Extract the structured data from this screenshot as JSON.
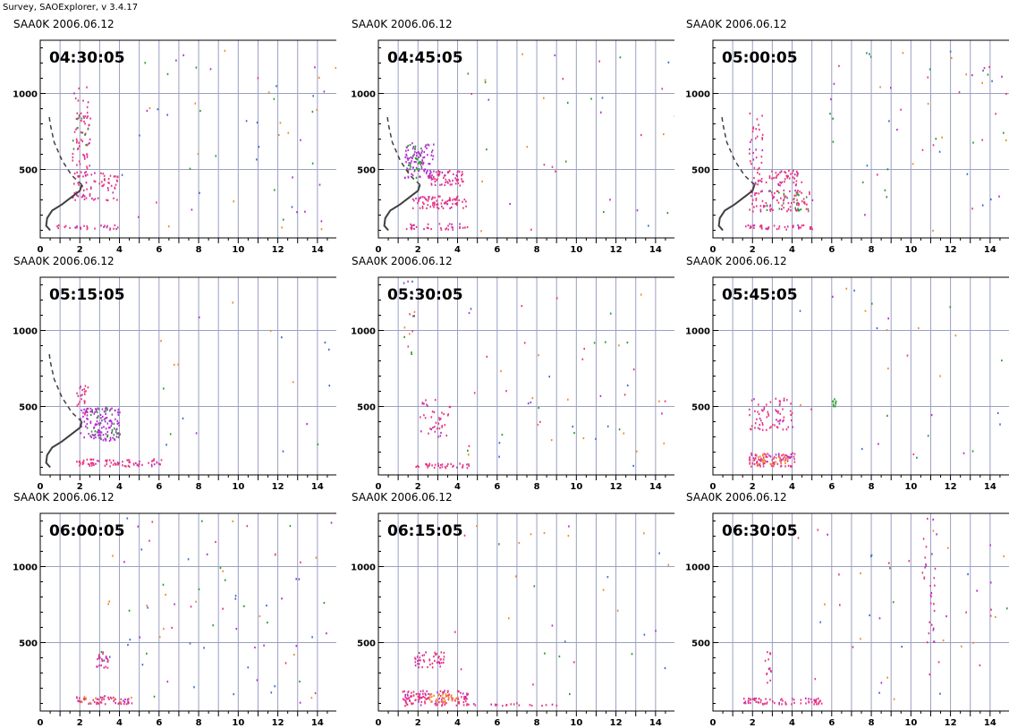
{
  "app_title": "Survey, SAOExplorer, v 3.4.17",
  "colors": {
    "grid": "#9aa0c4",
    "axis": "#000000",
    "echo_main": "#e8357f",
    "echo_alt": "#b02fd0",
    "echo_green": "#2e9a2e",
    "echo_orange": "#f08a2a",
    "echo_blue": "#3a6ad0",
    "profile": "#404040"
  },
  "chart_data": [
    {
      "type": "scatter",
      "caption": "SAA0K 2006.06.12",
      "time": "04:30:05",
      "x_ticks": [
        "0",
        "2",
        "4",
        "6",
        "8",
        "10",
        "12",
        "14"
      ],
      "y_ticks": [
        "500",
        "1000"
      ],
      "xlim": [
        0,
        15
      ],
      "ylim": [
        50,
        1350
      ],
      "grid": true,
      "has_profile": true,
      "clusters": [
        {
          "x": [
            1.6,
            2.5
          ],
          "y": [
            400,
            1050
          ],
          "n": 70,
          "c": "m"
        },
        {
          "x": [
            1.6,
            3.9
          ],
          "y": [
            300,
            500
          ],
          "n": 70,
          "c": "m"
        },
        {
          "x": [
            0.8,
            4.0
          ],
          "y": [
            110,
            140
          ],
          "n": 28,
          "c": "m"
        },
        {
          "x": [
            1.6,
            2.4
          ],
          "y": [
            600,
            900
          ],
          "n": 10,
          "c": "g"
        },
        {
          "x": [
            4,
            15
          ],
          "y": [
            100,
            1300
          ],
          "n": 55,
          "c": "s"
        }
      ]
    },
    {
      "type": "scatter",
      "caption": "SAA0K 2006.06.12",
      "time": "04:45:05",
      "x_ticks": [
        "0",
        "2",
        "4",
        "6",
        "8",
        "10",
        "12",
        "14"
      ],
      "y_ticks": [
        "500",
        "1000"
      ],
      "xlim": [
        0,
        15
      ],
      "ylim": [
        50,
        1350
      ],
      "grid": true,
      "has_profile": true,
      "clusters": [
        {
          "x": [
            1.3,
            2.8
          ],
          "y": [
            450,
            680
          ],
          "n": 90,
          "c": "a"
        },
        {
          "x": [
            1.4,
            2.2
          ],
          "y": [
            450,
            680
          ],
          "n": 25,
          "c": "g"
        },
        {
          "x": [
            2.5,
            4.3
          ],
          "y": [
            400,
            500
          ],
          "n": 70,
          "c": "m"
        },
        {
          "x": [
            1.7,
            4.4
          ],
          "y": [
            250,
            330
          ],
          "n": 80,
          "c": "m"
        },
        {
          "x": [
            1.2,
            4.5
          ],
          "y": [
            110,
            150
          ],
          "n": 35,
          "c": "m"
        },
        {
          "x": [
            4,
            15
          ],
          "y": [
            100,
            1300
          ],
          "n": 35,
          "c": "s"
        }
      ]
    },
    {
      "type": "scatter",
      "caption": "SAA0K 2006.06.12",
      "time": "05:00:05",
      "x_ticks": [
        "0",
        "2",
        "4",
        "6",
        "8",
        "10",
        "12",
        "14"
      ],
      "y_ticks": [
        "500",
        "1000"
      ],
      "xlim": [
        0,
        15
      ],
      "ylim": [
        50,
        1350
      ],
      "grid": true,
      "has_profile": true,
      "clusters": [
        {
          "x": [
            1.8,
            2.5
          ],
          "y": [
            500,
            880
          ],
          "n": 30,
          "c": "m"
        },
        {
          "x": [
            2.0,
            4.5
          ],
          "y": [
            400,
            500
          ],
          "n": 60,
          "c": "m"
        },
        {
          "x": [
            1.8,
            5.0
          ],
          "y": [
            230,
            370
          ],
          "n": 90,
          "c": "m"
        },
        {
          "x": [
            2.5,
            4.8
          ],
          "y": [
            230,
            370
          ],
          "n": 20,
          "c": "g"
        },
        {
          "x": [
            1.6,
            5.0
          ],
          "y": [
            110,
            140
          ],
          "n": 40,
          "c": "m"
        },
        {
          "x": [
            5,
            15
          ],
          "y": [
            100,
            1300
          ],
          "n": 55,
          "c": "s"
        }
      ]
    },
    {
      "type": "scatter",
      "caption": "SAA0K 2006.06.12",
      "time": "05:15:05",
      "x_ticks": [
        "0",
        "2",
        "4",
        "6",
        "8",
        "10",
        "12",
        "14"
      ],
      "y_ticks": [
        "500",
        "1000"
      ],
      "xlim": [
        0,
        15
      ],
      "ylim": [
        50,
        1350
      ],
      "grid": true,
      "has_profile": true,
      "clusters": [
        {
          "x": [
            1.8,
            2.4
          ],
          "y": [
            450,
            650
          ],
          "n": 25,
          "c": "m"
        },
        {
          "x": [
            2.0,
            4.0
          ],
          "y": [
            280,
            500
          ],
          "n": 130,
          "c": "a"
        },
        {
          "x": [
            2.5,
            4.0
          ],
          "y": [
            280,
            500
          ],
          "n": 25,
          "c": "g"
        },
        {
          "x": [
            1.8,
            6.2
          ],
          "y": [
            110,
            160
          ],
          "n": 75,
          "c": "m"
        },
        {
          "x": [
            5,
            15
          ],
          "y": [
            100,
            1300
          ],
          "n": 20,
          "c": "s"
        }
      ]
    },
    {
      "type": "scatter",
      "caption": "SAA0K 2006.06.12",
      "time": "05:30:05",
      "x_ticks": [
        "0",
        "2",
        "4",
        "6",
        "8",
        "10",
        "12",
        "14"
      ],
      "y_ticks": [
        "500",
        "1000"
      ],
      "xlim": [
        0,
        15
      ],
      "ylim": [
        50,
        1350
      ],
      "grid": true,
      "has_profile": false,
      "clusters": [
        {
          "x": [
            1.2,
            1.8
          ],
          "y": [
            850,
            1330
          ],
          "n": 15,
          "c": "s"
        },
        {
          "x": [
            2.0,
            3.6
          ],
          "y": [
            300,
            550
          ],
          "n": 40,
          "c": "m"
        },
        {
          "x": [
            1.8,
            4.6
          ],
          "y": [
            100,
            130
          ],
          "n": 35,
          "c": "m"
        },
        {
          "x": [
            4,
            15
          ],
          "y": [
            100,
            1300
          ],
          "n": 50,
          "c": "s"
        }
      ]
    },
    {
      "type": "scatter",
      "caption": "SAA0K 2006.06.12",
      "time": "05:45:05",
      "x_ticks": [
        "0",
        "2",
        "4",
        "6",
        "8",
        "10",
        "12",
        "14"
      ],
      "y_ticks": [
        "500",
        "1000"
      ],
      "xlim": [
        0,
        15
      ],
      "ylim": [
        50,
        1350
      ],
      "grid": true,
      "has_profile": false,
      "clusters": [
        {
          "x": [
            1.8,
            4.0
          ],
          "y": [
            350,
            560
          ],
          "n": 70,
          "c": "m"
        },
        {
          "x": [
            1.8,
            4.1
          ],
          "y": [
            110,
            200
          ],
          "n": 95,
          "c": "m"
        },
        {
          "x": [
            2.2,
            3.8
          ],
          "y": [
            120,
            190
          ],
          "n": 25,
          "c": "o"
        },
        {
          "x": [
            6.0,
            6.2
          ],
          "y": [
            480,
            560
          ],
          "n": 8,
          "c": "g"
        },
        {
          "x": [
            4,
            15
          ],
          "y": [
            100,
            1300
          ],
          "n": 30,
          "c": "s"
        }
      ]
    },
    {
      "type": "scatter",
      "caption": "SAA0K 2006.06.12",
      "time": "06:00:05",
      "x_ticks": [
        "0",
        "2",
        "4",
        "6",
        "8",
        "10",
        "12",
        "14"
      ],
      "y_ticks": [
        "500",
        "1000"
      ],
      "xlim": [
        0,
        15
      ],
      "ylim": [
        50,
        1350
      ],
      "grid": true,
      "has_profile": false,
      "clusters": [
        {
          "x": [
            2.8,
            3.4
          ],
          "y": [
            340,
            450
          ],
          "n": 25,
          "c": "m"
        },
        {
          "x": [
            1.8,
            4.6
          ],
          "y": [
            100,
            150
          ],
          "n": 55,
          "c": "m"
        },
        {
          "x": [
            2.0,
            4.6
          ],
          "y": [
            100,
            150
          ],
          "n": 10,
          "c": "o"
        },
        {
          "x": [
            3,
            15
          ],
          "y": [
            100,
            1350
          ],
          "n": 80,
          "c": "s"
        }
      ]
    },
    {
      "type": "scatter",
      "caption": "SAA0K 2006.06.12",
      "time": "06:15:05",
      "x_ticks": [
        "0",
        "2",
        "4",
        "6",
        "8",
        "10",
        "12",
        "14"
      ],
      "y_ticks": [
        "500",
        "1000"
      ],
      "xlim": [
        0,
        15
      ],
      "ylim": [
        50,
        1350
      ],
      "grid": true,
      "has_profile": false,
      "clusters": [
        {
          "x": [
            1.8,
            3.3
          ],
          "y": [
            340,
            450
          ],
          "n": 45,
          "c": "m"
        },
        {
          "x": [
            1.2,
            4.5
          ],
          "y": [
            90,
            190
          ],
          "n": 130,
          "c": "m"
        },
        {
          "x": [
            2.5,
            4.0
          ],
          "y": [
            110,
            170
          ],
          "n": 30,
          "c": "o"
        },
        {
          "x": [
            4.5,
            9.0
          ],
          "y": [
            90,
            110
          ],
          "n": 20,
          "c": "m"
        },
        {
          "x": [
            3,
            15
          ],
          "y": [
            100,
            1300
          ],
          "n": 30,
          "c": "s"
        }
      ]
    },
    {
      "type": "scatter",
      "caption": "SAA0K 2006.06.12",
      "time": "06:30:05",
      "x_ticks": [
        "0",
        "2",
        "4",
        "6",
        "8",
        "10",
        "12",
        "14"
      ],
      "y_ticks": [
        "500",
        "1000"
      ],
      "xlim": [
        0,
        15
      ],
      "ylim": [
        50,
        1350
      ],
      "grid": true,
      "has_profile": false,
      "clusters": [
        {
          "x": [
            2.6,
            3.0
          ],
          "y": [
            200,
            450
          ],
          "n": 15,
          "c": "m"
        },
        {
          "x": [
            1.5,
            5.5
          ],
          "y": [
            100,
            140
          ],
          "n": 70,
          "c": "m"
        },
        {
          "x": [
            10.5,
            11.2
          ],
          "y": [
            500,
            1350
          ],
          "n": 30,
          "c": "m"
        },
        {
          "x": [
            4,
            15
          ],
          "y": [
            100,
            1300
          ],
          "n": 45,
          "c": "s"
        }
      ]
    }
  ]
}
